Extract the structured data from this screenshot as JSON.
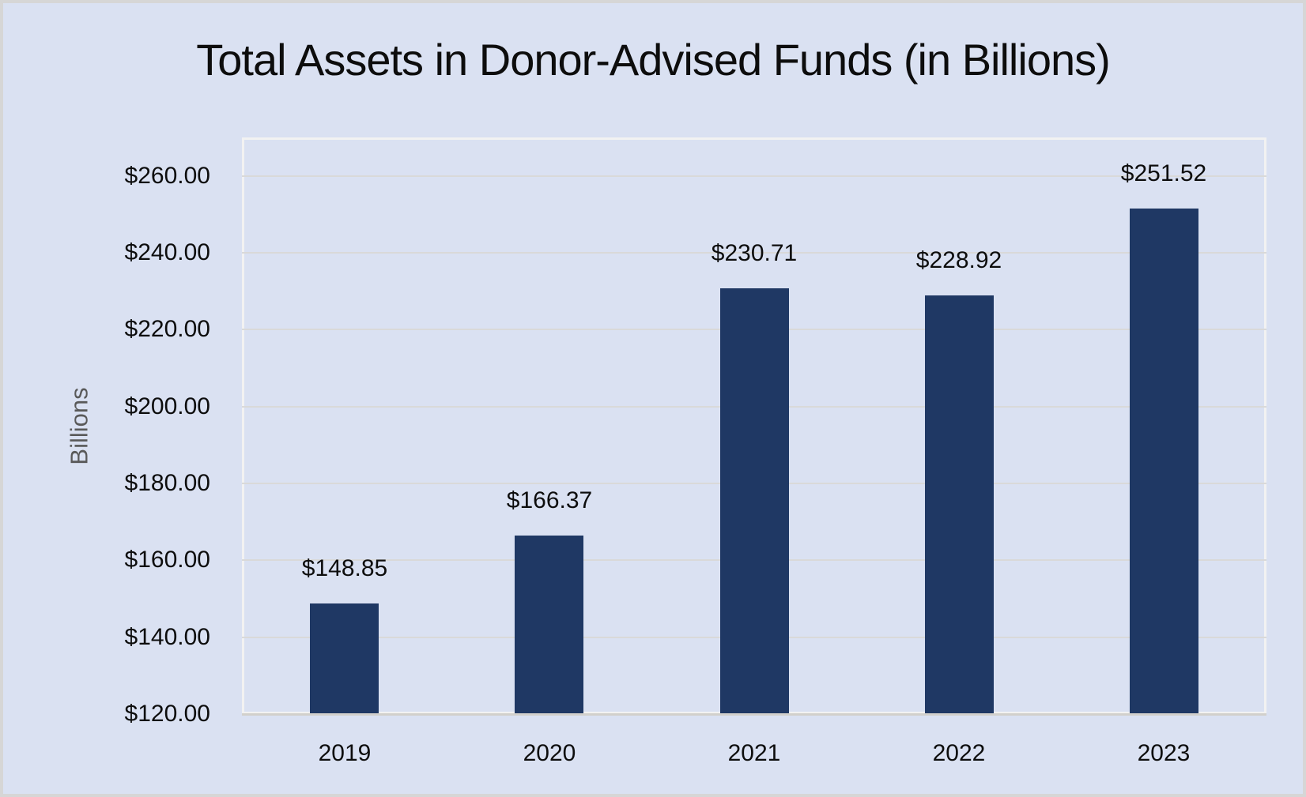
{
  "chart_data": {
    "type": "bar",
    "title": "Total Assets in Donor-Advised Funds (in Billions)",
    "ylabel": "Billions",
    "xlabel": "",
    "categories": [
      "2019",
      "2020",
      "2021",
      "2022",
      "2023"
    ],
    "values": [
      148.85,
      166.37,
      230.71,
      228.92,
      251.52
    ],
    "data_labels": [
      "$148.85",
      "$166.37",
      "$230.71",
      "$228.92",
      "$251.52"
    ],
    "y_tick_values": [
      120,
      140,
      160,
      180,
      200,
      220,
      240,
      260
    ],
    "y_tick_labels": [
      "$120.00",
      "$140.00",
      "$160.00",
      "$180.00",
      "$200.00",
      "$220.00",
      "$240.00",
      "$260.00"
    ],
    "ylim": [
      120,
      270
    ],
    "grid": true,
    "legend": "none"
  },
  "colors": {
    "background": "#dae1f2",
    "outer_border": "#d6d6d6",
    "bar": "#1f3864",
    "gridline": "#d9d9d9",
    "baseline": "#d2d0cc",
    "plot_border": "#f2f2f2",
    "title_text": "#0d0d0d",
    "tick_text": "#0d0d0d",
    "axis_label_text": "#595959"
  }
}
